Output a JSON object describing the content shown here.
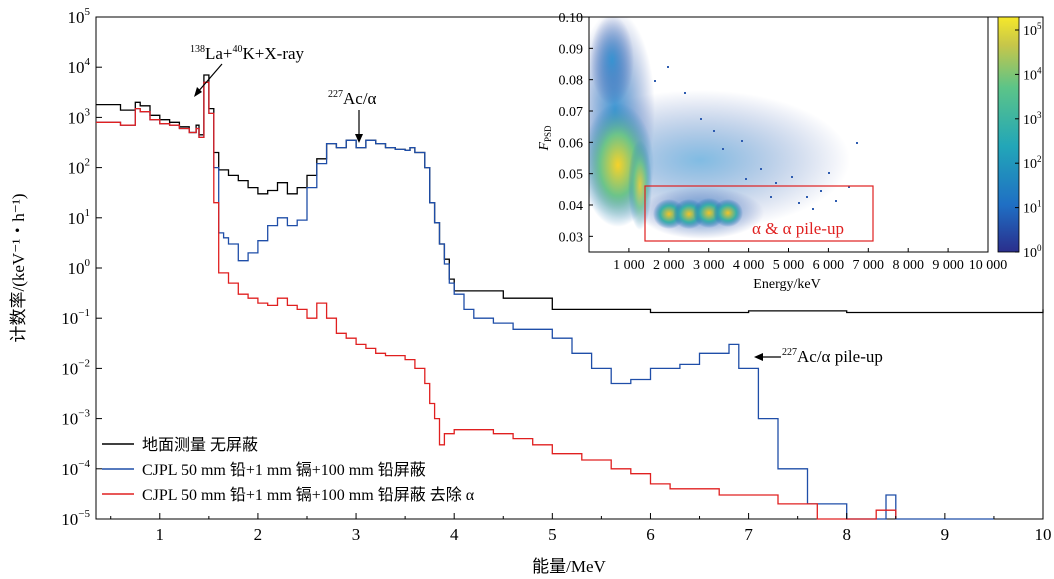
{
  "chart_data": [
    {
      "type": "line",
      "xlabel": "能量/MeV",
      "ylabel": "计数率/(keV⁻¹・h⁻¹)",
      "xlim": [
        0.35,
        10
      ],
      "ylim": [
        1e-05,
        100000.0
      ],
      "yscale": "log",
      "x_ticks": [
        1,
        2,
        3,
        4,
        5,
        6,
        7,
        8,
        9,
        10
      ],
      "y_ticks": [
        {
          "value": 100000.0,
          "mantissa": "10",
          "exp": "5"
        },
        {
          "value": 10000.0,
          "mantissa": "10",
          "exp": "4"
        },
        {
          "value": 1000.0,
          "mantissa": "10",
          "exp": "3"
        },
        {
          "value": 100.0,
          "mantissa": "10",
          "exp": "2"
        },
        {
          "value": 10.0,
          "mantissa": "10",
          "exp": "1"
        },
        {
          "value": 1.0,
          "mantissa": "10",
          "exp": "0"
        },
        {
          "value": 0.1,
          "mantissa": "10",
          "exp": "−1"
        },
        {
          "value": 0.01,
          "mantissa": "10",
          "exp": "−2"
        },
        {
          "value": 0.001,
          "mantissa": "10",
          "exp": "−3"
        },
        {
          "value": 0.0001,
          "mantissa": "10",
          "exp": "−4"
        },
        {
          "value": 1e-05,
          "mantissa": "10",
          "exp": "−5"
        }
      ],
      "grid": false,
      "legend_position": "bottom-left",
      "series": [
        {
          "name": "地面测量 无屏蔽",
          "color": "#000000",
          "points": [
            [
              0.35,
              1800
            ],
            [
              0.6,
              1400
            ],
            [
              0.75,
              2000
            ],
            [
              0.8,
              1700
            ],
            [
              0.9,
              1100
            ],
            [
              1.0,
              900
            ],
            [
              1.1,
              800
            ],
            [
              1.2,
              650
            ],
            [
              1.3,
              500
            ],
            [
              1.37,
              700
            ],
            [
              1.4,
              450
            ],
            [
              1.45,
              7000
            ],
            [
              1.5,
              1500
            ],
            [
              1.55,
              200
            ],
            [
              1.6,
              90
            ],
            [
              1.7,
              70
            ],
            [
              1.8,
              55
            ],
            [
              1.9,
              40
            ],
            [
              2.0,
              30
            ],
            [
              2.1,
              35
            ],
            [
              2.2,
              50
            ],
            [
              2.3,
              30
            ],
            [
              2.4,
              40
            ],
            [
              2.5,
              70
            ],
            [
              2.6,
              150
            ],
            [
              2.7,
              300
            ],
            [
              2.8,
              250
            ],
            [
              2.9,
              350
            ],
            [
              3.0,
              250
            ],
            [
              3.1,
              350
            ],
            [
              3.2,
              300
            ],
            [
              3.3,
              250
            ],
            [
              3.4,
              230
            ],
            [
              3.5,
              220
            ],
            [
              3.55,
              250
            ],
            [
              3.6,
              200
            ],
            [
              3.7,
              100
            ],
            [
              3.75,
              20
            ],
            [
              3.8,
              8
            ],
            [
              3.85,
              3
            ],
            [
              3.9,
              1.5
            ],
            [
              3.95,
              0.6
            ],
            [
              4.0,
              0.35
            ],
            [
              4.5,
              0.25
            ],
            [
              5.0,
              0.15
            ],
            [
              6.0,
              0.13
            ],
            [
              7.0,
              0.14
            ],
            [
              8.0,
              0.13
            ],
            [
              9.0,
              0.13
            ],
            [
              10.0,
              0.15
            ]
          ]
        },
        {
          "name": "CJPL 50 mm 铅+1 mm 镉+100 mm 铅屏蔽",
          "color": "#1f4ea8",
          "points": [
            [
              0.35,
              800
            ],
            [
              0.6,
              700
            ],
            [
              0.75,
              1500
            ],
            [
              0.8,
              1300
            ],
            [
              0.9,
              900
            ],
            [
              1.0,
              750
            ],
            [
              1.1,
              700
            ],
            [
              1.2,
              600
            ],
            [
              1.3,
              500
            ],
            [
              1.37,
              600
            ],
            [
              1.4,
              400
            ],
            [
              1.45,
              5000
            ],
            [
              1.5,
              1200
            ],
            [
              1.55,
              100
            ],
            [
              1.6,
              5
            ],
            [
              1.65,
              4
            ],
            [
              1.7,
              3
            ],
            [
              1.8,
              1.4
            ],
            [
              1.9,
              2
            ],
            [
              2.0,
              3.5
            ],
            [
              2.1,
              7
            ],
            [
              2.2,
              10
            ],
            [
              2.3,
              7
            ],
            [
              2.4,
              9
            ],
            [
              2.5,
              40
            ],
            [
              2.6,
              120
            ],
            [
              2.7,
              300
            ],
            [
              2.8,
              250
            ],
            [
              2.9,
              350
            ],
            [
              3.0,
              250
            ],
            [
              3.1,
              350
            ],
            [
              3.2,
              300
            ],
            [
              3.3,
              250
            ],
            [
              3.4,
              230
            ],
            [
              3.5,
              220
            ],
            [
              3.55,
              250
            ],
            [
              3.6,
              200
            ],
            [
              3.7,
              100
            ],
            [
              3.75,
              20
            ],
            [
              3.8,
              8
            ],
            [
              3.85,
              3
            ],
            [
              3.9,
              1.2
            ],
            [
              3.95,
              0.5
            ],
            [
              4.0,
              0.3
            ],
            [
              4.1,
              0.15
            ],
            [
              4.2,
              0.1
            ],
            [
              4.4,
              0.08
            ],
            [
              4.6,
              0.06
            ],
            [
              5.0,
              0.04
            ],
            [
              5.2,
              0.02
            ],
            [
              5.4,
              0.01
            ],
            [
              5.6,
              0.005
            ],
            [
              5.8,
              0.006
            ],
            [
              6.0,
              0.01
            ],
            [
              6.3,
              0.012
            ],
            [
              6.5,
              0.02
            ],
            [
              6.8,
              0.03
            ],
            [
              6.9,
              0.01
            ],
            [
              7.1,
              0.001
            ],
            [
              7.3,
              0.0001
            ],
            [
              7.6,
              2e-05
            ],
            [
              8.0,
              1e-05
            ],
            [
              8.4,
              3e-05
            ],
            [
              8.5,
              1e-05
            ],
            [
              9.3,
              1e-05
            ],
            [
              9.5,
              1e-05
            ]
          ]
        },
        {
          "name": "CJPL 50 mm 铅+1 mm 镉+100 mm 铅屏蔽 去除 α",
          "color": "#e02020",
          "points": [
            [
              0.35,
              800
            ],
            [
              0.6,
              700
            ],
            [
              0.75,
              1500
            ],
            [
              0.8,
              1300
            ],
            [
              0.9,
              900
            ],
            [
              1.0,
              750
            ],
            [
              1.1,
              700
            ],
            [
              1.2,
              600
            ],
            [
              1.3,
              500
            ],
            [
              1.37,
              600
            ],
            [
              1.4,
              400
            ],
            [
              1.45,
              5000
            ],
            [
              1.5,
              1200
            ],
            [
              1.55,
              20
            ],
            [
              1.6,
              0.8
            ],
            [
              1.7,
              0.5
            ],
            [
              1.8,
              0.3
            ],
            [
              1.9,
              0.25
            ],
            [
              2.0,
              0.2
            ],
            [
              2.1,
              0.18
            ],
            [
              2.2,
              0.25
            ],
            [
              2.3,
              0.18
            ],
            [
              2.4,
              0.15
            ],
            [
              2.5,
              0.1
            ],
            [
              2.6,
              0.2
            ],
            [
              2.7,
              0.1
            ],
            [
              2.8,
              0.05
            ],
            [
              2.9,
              0.04
            ],
            [
              3.0,
              0.03
            ],
            [
              3.1,
              0.025
            ],
            [
              3.2,
              0.02
            ],
            [
              3.3,
              0.018
            ],
            [
              3.5,
              0.015
            ],
            [
              3.6,
              0.01
            ],
            [
              3.7,
              0.005
            ],
            [
              3.75,
              0.002
            ],
            [
              3.8,
              0.001
            ],
            [
              3.85,
              0.0003
            ],
            [
              3.9,
              0.0005
            ],
            [
              4.0,
              0.0006
            ],
            [
              4.4,
              0.0005
            ],
            [
              4.6,
              0.0004
            ],
            [
              4.8,
              0.0003
            ],
            [
              5.0,
              0.0002
            ],
            [
              5.3,
              0.00015
            ],
            [
              5.6,
              0.0001
            ],
            [
              5.8,
              8e-05
            ],
            [
              6.0,
              5e-05
            ],
            [
              6.2,
              4e-05
            ],
            [
              6.5,
              4e-05
            ],
            [
              6.7,
              3e-05
            ],
            [
              7.0,
              3e-05
            ],
            [
              7.3,
              2e-05
            ],
            [
              7.7,
              1e-05
            ],
            [
              8.0,
              1e-05
            ],
            [
              8.3,
              1.5e-05
            ],
            [
              8.5,
              1e-05
            ]
          ]
        }
      ],
      "annotations": [
        {
          "pre_sup": "138",
          "text1": "La+",
          "mid_sup": "40",
          "text2": "K+X-ray",
          "x": 1.52,
          "y": 4000
        },
        {
          "pre_sup": "227",
          "text": "Ac/α",
          "x": 3.15,
          "y": 500
        },
        {
          "pre_sup": "227",
          "text": "Ac/α pile-up",
          "x": 6.95,
          "y": 0.015
        }
      ]
    },
    {
      "type": "heatmap",
      "xlabel": "Energy/keV",
      "ylabel_main": "F",
      "ylabel_sub": "PSD",
      "xlim": [
        0,
        10000
      ],
      "ylim": [
        0.025,
        0.1
      ],
      "x_ticks": [
        "1 000",
        "2 000",
        "3 000",
        "4 000",
        "5 000",
        "6 000",
        "7 000",
        "8 000",
        "9 000",
        "10 000"
      ],
      "y_ticks": [
        "0.10",
        "0.09",
        "0.08",
        "0.07",
        "0.06",
        "0.05",
        "0.04",
        "0.03"
      ],
      "colorbar": {
        "min": 1,
        "max": 100000,
        "scale": "log",
        "ticks": [
          {
            "mantissa": "10",
            "exp": "5"
          },
          {
            "mantissa": "10",
            "exp": "4"
          },
          {
            "mantissa": "10",
            "exp": "3"
          },
          {
            "mantissa": "10",
            "exp": "2"
          },
          {
            "mantissa": "10",
            "exp": "1"
          },
          {
            "mantissa": "10",
            "exp": "0"
          }
        ]
      },
      "highlight_box": {
        "label": "α & α pile-up",
        "energy_range": [
          1500,
          7000
        ],
        "psd_range": [
          0.029,
          0.046
        ],
        "color": "#e02020"
      }
    }
  ]
}
